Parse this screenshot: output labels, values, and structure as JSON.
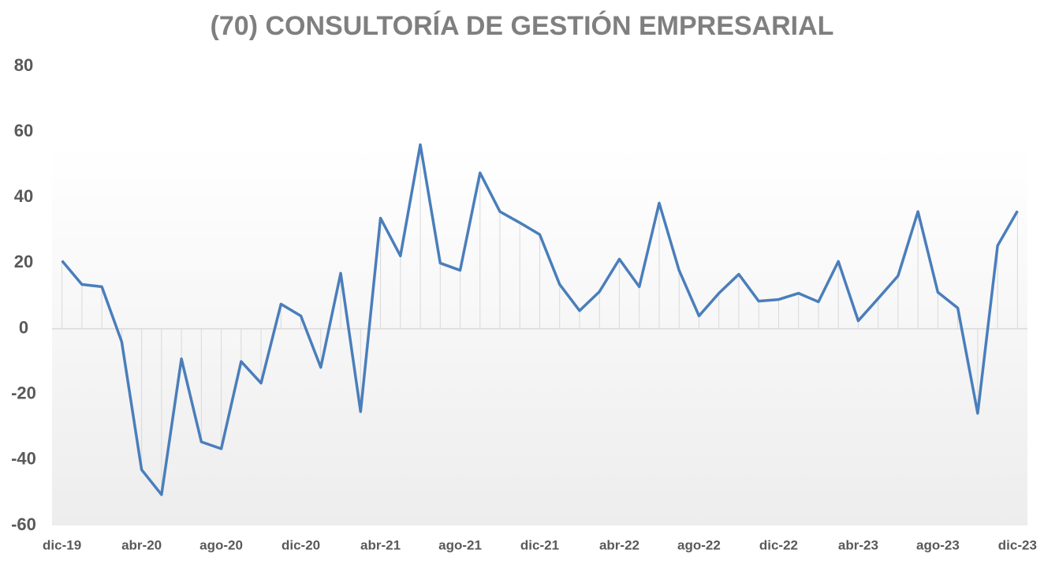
{
  "chart_data": {
    "type": "line",
    "title": "(70) CONSULTORÍA DE GESTIÓN EMPRESARIAL",
    "categories": [
      "dic-19",
      null,
      null,
      null,
      "abr-20",
      null,
      null,
      null,
      "ago-20",
      null,
      null,
      null,
      "dic-20",
      null,
      null,
      null,
      "abr-21",
      null,
      null,
      null,
      "ago-21",
      null,
      null,
      null,
      "dic-21",
      null,
      null,
      null,
      "abr-22",
      null,
      null,
      null,
      "ago-22",
      null,
      null,
      null,
      "dic-22",
      null,
      null,
      null,
      "abr-23",
      null,
      null,
      null,
      "ago-23",
      null,
      null,
      null,
      "dic-23"
    ],
    "series": [
      {
        "color": "#4a7ebb",
        "values": [
          20.7,
          13.5,
          12.8,
          -4,
          -43,
          -50.6,
          -9.2,
          -34.5,
          -36.6,
          -10,
          -16.6,
          7.5,
          3.9,
          -11.8,
          16.9,
          -25.3,
          33.7,
          22.2,
          56.1,
          20,
          17.8,
          47.5,
          35.7,
          32.3,
          28.7,
          13.5,
          5.5,
          11.3,
          21.2,
          12.8,
          38.3,
          17.8,
          3.9,
          10.8,
          16.6,
          8.4,
          8.9,
          10.8,
          8.2,
          20.5,
          2.4,
          9.2,
          16.1,
          35.7,
          11.1,
          6.3,
          -25.8,
          25.3,
          35.9
        ]
      }
    ],
    "ylim": [
      -60,
      80
    ],
    "yticks": [
      -60,
      -40,
      -20,
      0,
      20,
      40,
      60,
      80
    ]
  }
}
